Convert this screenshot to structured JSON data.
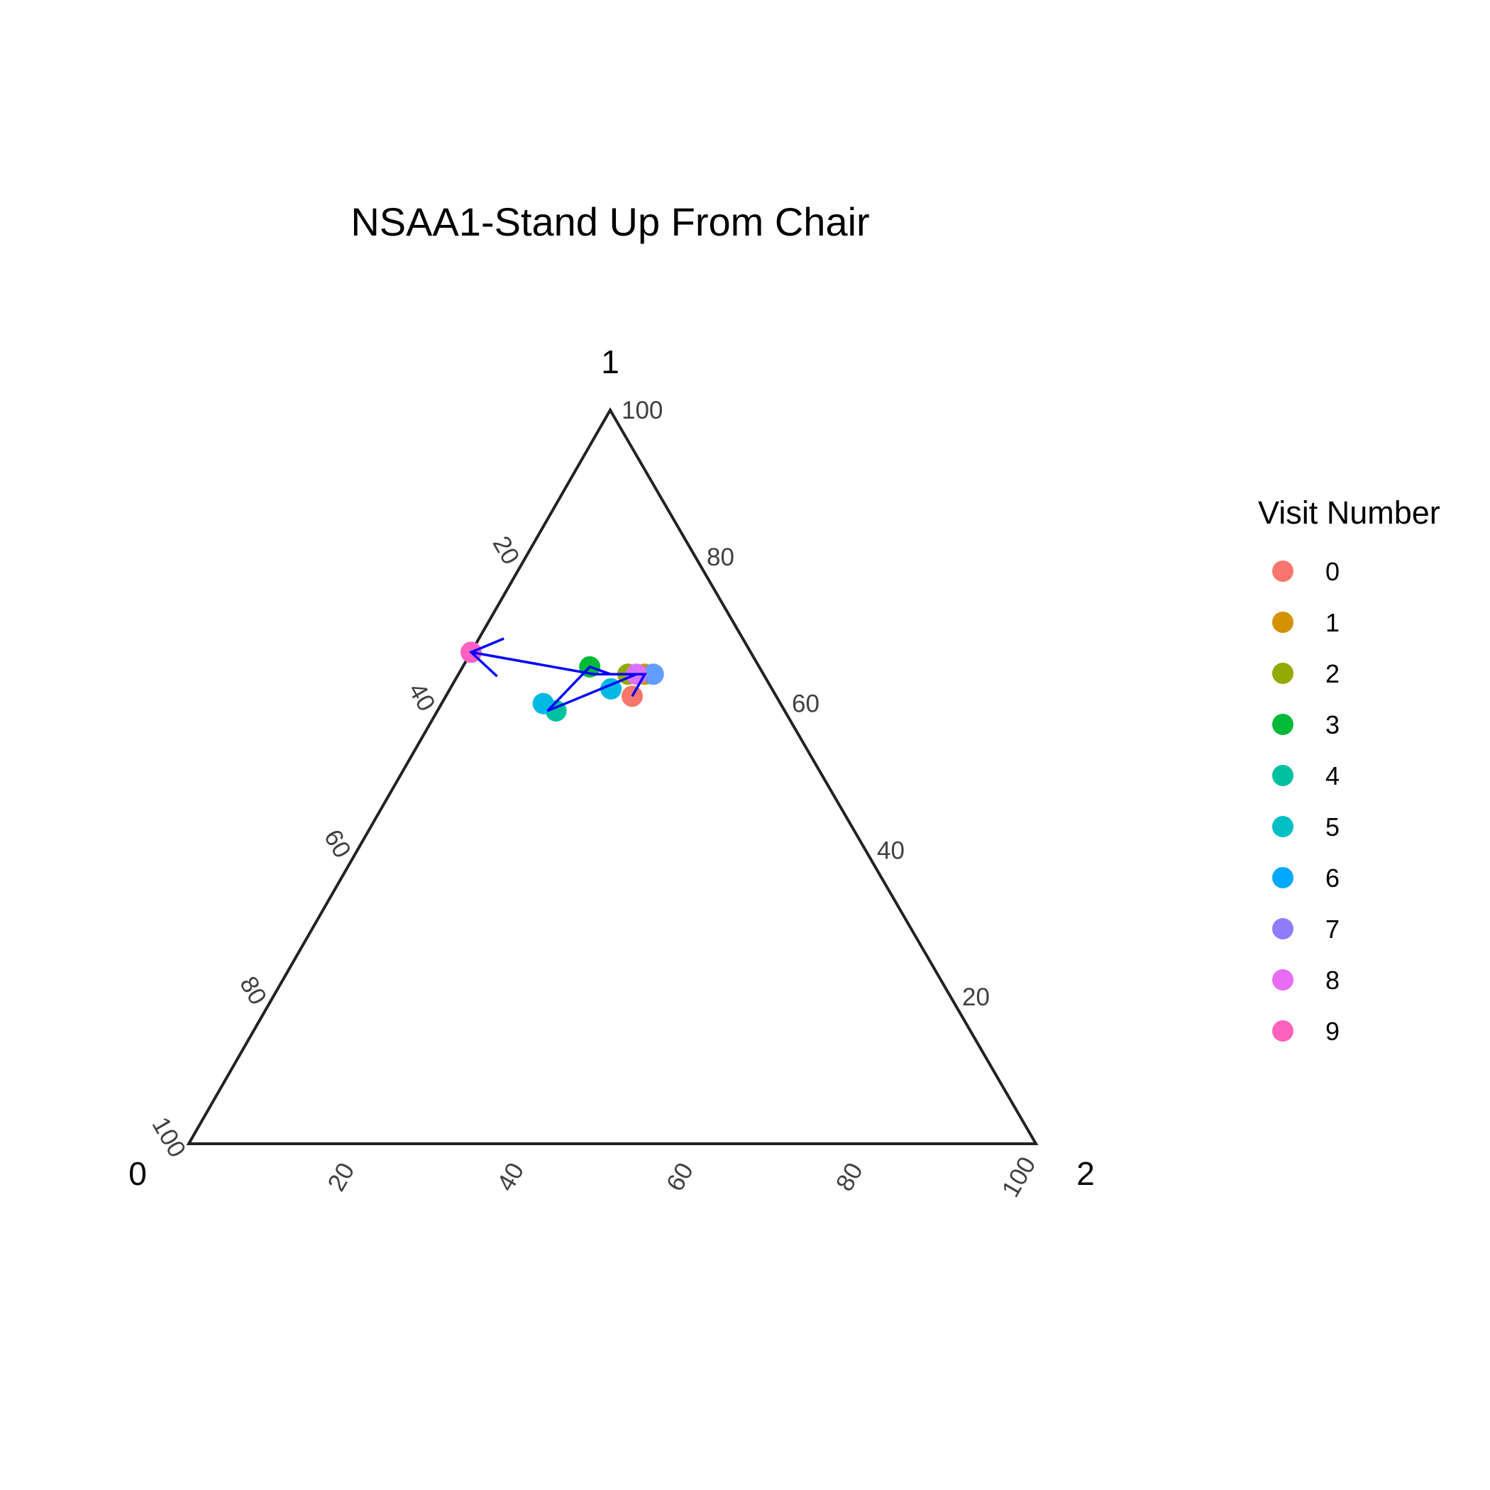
{
  "chart_data": {
    "type": "scatter",
    "subtype": "ternary",
    "title": "NSAA1-Stand Up From Chair",
    "axes": {
      "a": {
        "vertex_label": "0",
        "range": [
          0,
          100
        ]
      },
      "b": {
        "vertex_label": "1",
        "range": [
          0,
          100
        ]
      },
      "c": {
        "vertex_label": "2",
        "range": [
          0,
          100
        ]
      }
    },
    "ticks": [
      "20",
      "40",
      "60",
      "80",
      "100"
    ],
    "grid": false,
    "legend": {
      "title": "Visit Number",
      "position": "right"
    },
    "series": [
      {
        "name": "0",
        "color": "#F8766D",
        "a": 17,
        "b": 61,
        "c": 22
      },
      {
        "name": "1",
        "color": "#D39200",
        "a": 14,
        "b": 64,
        "c": 22
      },
      {
        "name": "2",
        "color": "#93AA00",
        "a": 16,
        "b": 64,
        "c": 20
      },
      {
        "name": "3",
        "color": "#00BA38",
        "a": 20,
        "b": 65,
        "c": 15
      },
      {
        "name": "4",
        "color": "#00C19F",
        "a": 27,
        "b": 59,
        "c": 14
      },
      {
        "name": "5",
        "color": "#00B9E3",
        "a": 28,
        "b": 60,
        "c": 12
      },
      {
        "name": "6",
        "color": "#00B9E3",
        "a": 19,
        "b": 62,
        "c": 19
      },
      {
        "name": "7",
        "color": "#619CFF",
        "a": 13,
        "b": 64,
        "c": 23
      },
      {
        "name": "8",
        "color": "#DB72FB",
        "a": 15,
        "b": 64,
        "c": 21
      },
      {
        "name": "9",
        "color": "#FF61C3",
        "a": 33,
        "b": 67,
        "c": 0
      }
    ],
    "legend_colors": [
      "#F8766D",
      "#D39200",
      "#93AA00",
      "#00BA38",
      "#00C19F",
      "#00BFC4",
      "#00A9FF",
      "#8F7CFF",
      "#E76BF3",
      "#FF62BC"
    ],
    "path": {
      "color": "#0000FF",
      "points": [
        {
          "a": 17,
          "b": 61,
          "c": 22
        },
        {
          "a": 14,
          "b": 64,
          "c": 22
        },
        {
          "a": 18,
          "b": 64,
          "c": 18
        },
        {
          "a": 20,
          "b": 65,
          "c": 15
        },
        {
          "a": 28,
          "b": 59,
          "c": 13
        },
        {
          "a": 15,
          "b": 64,
          "c": 21
        },
        {
          "a": 20,
          "b": 64,
          "c": 16
        },
        {
          "a": 33,
          "b": 67,
          "c": 0
        }
      ]
    }
  }
}
